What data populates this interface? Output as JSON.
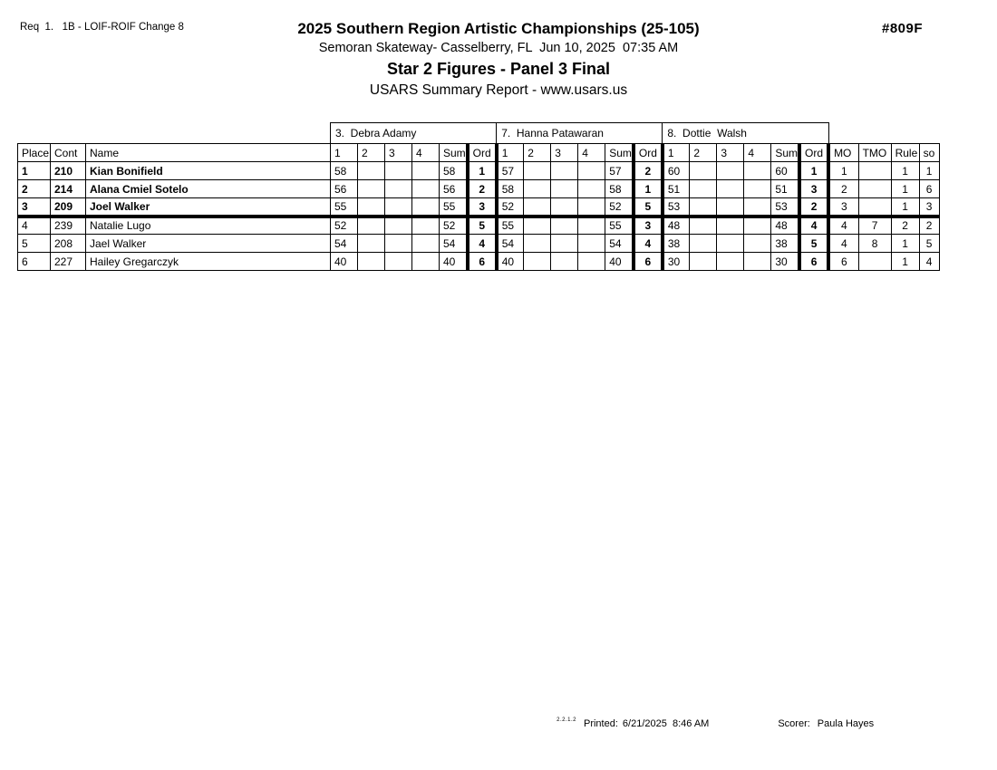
{
  "header": {
    "req": "Req  1.   1B - LOIF-ROIF Change 8",
    "title": "2025 Southern Region Artistic Championships (25-105)",
    "venue": "Semoran Skateway- Casselberry, FL  Jun 10, 2025  07:35 AM",
    "event": "Star 2 Figures - Panel 3 Final",
    "report": "USARS Summary Report - www.usars.us",
    "number": "#809F"
  },
  "table": {
    "judges": [
      "3.  Debra Adamy",
      "7.  Hanna Patawaran",
      "8.  Dottie  Walsh"
    ],
    "left_headers": [
      "Place",
      "Cont",
      "Name"
    ],
    "judge_headers": [
      "1",
      "2",
      "3",
      "4",
      "Sum",
      "Ord"
    ],
    "right_headers": [
      "MO",
      "TMO",
      "Rule",
      "so"
    ],
    "cut_after": 3,
    "rows": [
      {
        "bold": true,
        "place": "1",
        "cont": "210",
        "name": "Kian Bonifield",
        "scores": [
          [
            "58",
            "",
            "",
            "",
            "58",
            "1"
          ],
          [
            "57",
            "",
            "",
            "",
            "57",
            "2"
          ],
          [
            "60",
            "",
            "",
            "",
            "60",
            "1"
          ]
        ],
        "mo": "1",
        "tmo": "",
        "rule": "1",
        "so": "1"
      },
      {
        "bold": true,
        "place": "2",
        "cont": "214",
        "name": "Alana Cmiel Sotelo",
        "scores": [
          [
            "56",
            "",
            "",
            "",
            "56",
            "2"
          ],
          [
            "58",
            "",
            "",
            "",
            "58",
            "1"
          ],
          [
            "51",
            "",
            "",
            "",
            "51",
            "3"
          ]
        ],
        "mo": "2",
        "tmo": "",
        "rule": "1",
        "so": "6"
      },
      {
        "bold": true,
        "place": "3",
        "cont": "209",
        "name": "Joel Walker",
        "scores": [
          [
            "55",
            "",
            "",
            "",
            "55",
            "3"
          ],
          [
            "52",
            "",
            "",
            "",
            "52",
            "5"
          ],
          [
            "53",
            "",
            "",
            "",
            "53",
            "2"
          ]
        ],
        "mo": "3",
        "tmo": "",
        "rule": "1",
        "so": "3"
      },
      {
        "bold": false,
        "place": "4",
        "cont": "239",
        "name": "Natalie Lugo",
        "scores": [
          [
            "52",
            "",
            "",
            "",
            "52",
            "5"
          ],
          [
            "55",
            "",
            "",
            "",
            "55",
            "3"
          ],
          [
            "48",
            "",
            "",
            "",
            "48",
            "4"
          ]
        ],
        "mo": "4",
        "tmo": "7",
        "rule": "2",
        "so": "2"
      },
      {
        "bold": false,
        "place": "5",
        "cont": "208",
        "name": "Jael Walker",
        "scores": [
          [
            "54",
            "",
            "",
            "",
            "54",
            "4"
          ],
          [
            "54",
            "",
            "",
            "",
            "54",
            "4"
          ],
          [
            "38",
            "",
            "",
            "",
            "38",
            "5"
          ]
        ],
        "mo": "4",
        "tmo": "8",
        "rule": "1",
        "so": "5"
      },
      {
        "bold": false,
        "place": "6",
        "cont": "227",
        "name": "Hailey Gregarczyk",
        "scores": [
          [
            "40",
            "",
            "",
            "",
            "40",
            "6"
          ],
          [
            "40",
            "",
            "",
            "",
            "40",
            "6"
          ],
          [
            "30",
            "",
            "",
            "",
            "30",
            "6"
          ]
        ],
        "mo": "6",
        "tmo": "",
        "rule": "1",
        "so": "4"
      }
    ]
  },
  "footer": {
    "version": "2.2.1.2",
    "printed_label": "Printed:",
    "printed_value": "6/21/2025  8:46 AM",
    "scorer_label": "Scorer:",
    "scorer_value": "Paula Hayes"
  }
}
